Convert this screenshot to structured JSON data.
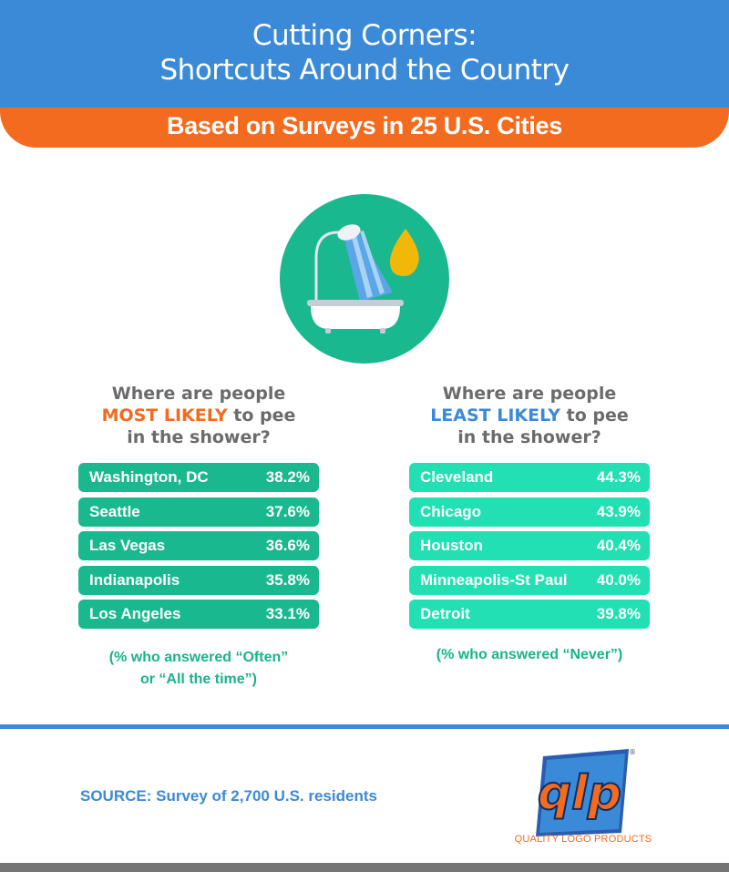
{
  "header": {
    "title_line1": "Cutting Corners:",
    "title_line2": "Shortcuts Around the Country",
    "banner": "Based on Surveys in 25 U.S. Cities"
  },
  "icon": {
    "name": "bathtub-shower-icon",
    "accent": "#1ab88f",
    "drop": "#f2b807"
  },
  "most_likely": {
    "q_line1": "Where are people",
    "q_highlight": "MOST LIKELY",
    "q_after": " to pee",
    "q_line3": "in the shower?",
    "rows": [
      {
        "city": "Washington, DC",
        "value": "38.2%"
      },
      {
        "city": "Seattle",
        "value": "37.6%"
      },
      {
        "city": "Las Vegas",
        "value": "36.6%"
      },
      {
        "city": "Indianapolis",
        "value": "35.8%"
      },
      {
        "city": "Los Angeles",
        "value": "33.1%"
      }
    ],
    "note_line1": "(% who answered “Often”",
    "note_line2": "or “All the time”)"
  },
  "least_likely": {
    "q_line1": "Where are people",
    "q_highlight": "LEAST LIKELY",
    "q_after": " to pee",
    "q_line3": "in the shower?",
    "rows": [
      {
        "city": "Cleveland",
        "value": "44.3%"
      },
      {
        "city": "Chicago",
        "value": "43.9%"
      },
      {
        "city": "Houston",
        "value": "40.4%"
      },
      {
        "city": "Minneapolis-St Paul",
        "value": "40.0%"
      },
      {
        "city": "Detroit",
        "value": "39.8%"
      }
    ],
    "note_line1": "(% who answered “Never”)"
  },
  "footer": {
    "source": "SOURCE: Survey of 2,700 U.S. residents",
    "logo_text": "QUALITY LOGO PRODUCTS"
  }
}
